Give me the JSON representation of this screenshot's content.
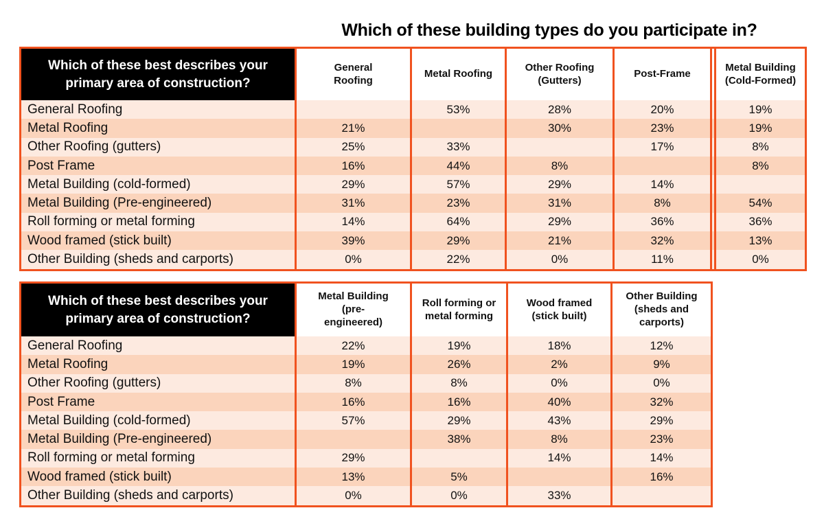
{
  "title": "Which of these building types do you participate in?",
  "colors": {
    "accent_orange": "#f0521f",
    "stripe_light": "#fdeae0",
    "stripe_dark": "#fbd4bc",
    "corner_header_bg": "#000000",
    "corner_header_text": "#ffffff"
  },
  "chart_data": [
    {
      "type": "table",
      "title": "Which of these building types do you participate in?",
      "corner_header": "Which of these best describes your primary area of construction?",
      "columns": [
        "General Roofing",
        "Metal Roofing",
        "Other Roofing (Gutters)",
        "Post-Frame",
        "Metal Building (Cold-Formed)"
      ],
      "rows": [
        {
          "label": "General Roofing",
          "values": [
            "",
            "53%",
            "28%",
            "20%",
            "19%"
          ]
        },
        {
          "label": "Metal Roofing",
          "values": [
            "21%",
            "",
            "30%",
            "23%",
            "19%"
          ]
        },
        {
          "label": "Other Roofing (gutters)",
          "values": [
            "25%",
            "33%",
            "",
            "17%",
            "8%"
          ]
        },
        {
          "label": "Post Frame",
          "values": [
            "16%",
            "44%",
            "8%",
            "",
            "8%"
          ]
        },
        {
          "label": "Metal Building (cold-formed)",
          "values": [
            "29%",
            "57%",
            "29%",
            "14%",
            ""
          ]
        },
        {
          "label": "Metal Building (Pre-engineered)",
          "values": [
            "31%",
            "23%",
            "31%",
            "8%",
            "54%"
          ]
        },
        {
          "label": "Roll forming or metal forming",
          "values": [
            "14%",
            "64%",
            "29%",
            "36%",
            "36%"
          ]
        },
        {
          "label": "Wood framed (stick built)",
          "values": [
            "39%",
            "29%",
            "21%",
            "32%",
            "13%"
          ]
        },
        {
          "label": "Other Building (sheds and carports)",
          "values": [
            "0%",
            "22%",
            "0%",
            "11%",
            "0%"
          ]
        }
      ]
    },
    {
      "type": "table",
      "title": "Which of these building types do you participate in?",
      "corner_header": "Which of these best describes your primary area of construction?",
      "columns": [
        "Metal Building (pre-engineered)",
        "Roll forming or metal forming",
        "Wood framed (stick built)",
        "Other Building (sheds and carports)"
      ],
      "rows": [
        {
          "label": "General Roofing",
          "values": [
            "22%",
            "19%",
            "18%",
            "12%"
          ]
        },
        {
          "label": "Metal Roofing",
          "values": [
            "19%",
            "26%",
            "2%",
            "9%"
          ]
        },
        {
          "label": "Other Roofing (gutters)",
          "values": [
            "8%",
            "8%",
            "0%",
            "0%"
          ]
        },
        {
          "label": "Post Frame",
          "values": [
            "16%",
            "16%",
            "40%",
            "32%"
          ]
        },
        {
          "label": "Metal Building (cold-formed)",
          "values": [
            "57%",
            "29%",
            "43%",
            "29%"
          ]
        },
        {
          "label": "Metal Building (Pre-engineered)",
          "values": [
            "",
            "38%",
            "8%",
            "23%"
          ]
        },
        {
          "label": "Roll forming or metal forming",
          "values": [
            "29%",
            "",
            "14%",
            "14%"
          ]
        },
        {
          "label": "Wood framed (stick built)",
          "values": [
            "13%",
            "5%",
            "",
            "16%"
          ]
        },
        {
          "label": "Other Building (sheds and carports)",
          "values": [
            "0%",
            "0%",
            "33%",
            ""
          ]
        }
      ]
    }
  ]
}
